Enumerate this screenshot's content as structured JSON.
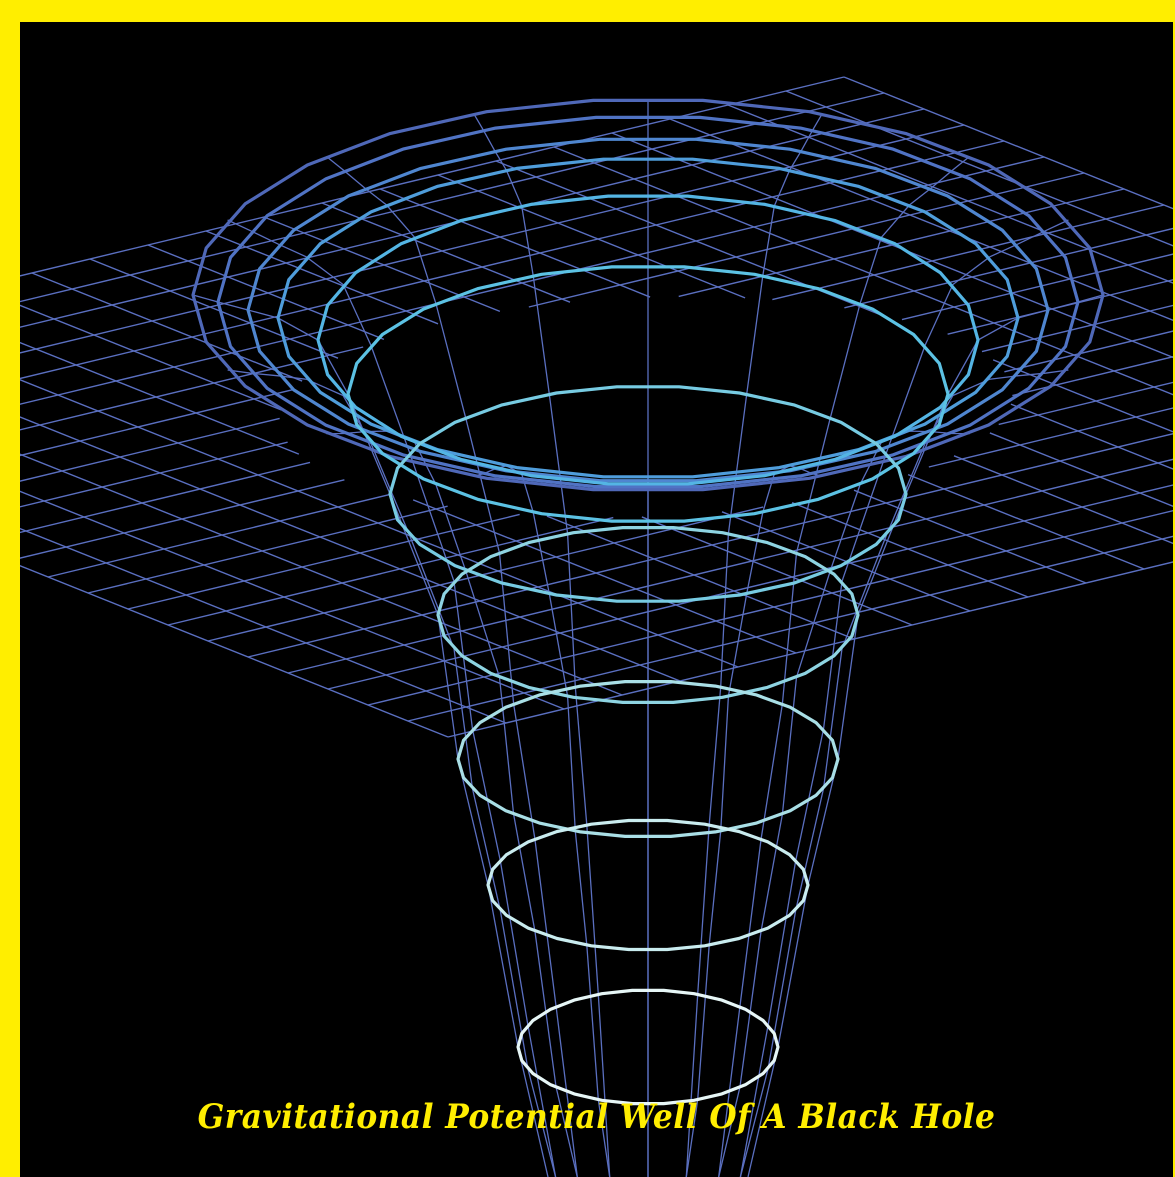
{
  "caption": "Gravitational Potential Well Of A Black Hole",
  "colors": {
    "border": "#ffee00",
    "background": "#000000",
    "grid": "#5a6fc0",
    "caption": "#ffee00"
  },
  "rings": [
    {
      "color": "#4f68b8"
    },
    {
      "color": "#5073c4"
    },
    {
      "color": "#4f86d0"
    },
    {
      "color": "#4f9ddb"
    },
    {
      "color": "#54b5e4"
    },
    {
      "color": "#5cc2e4"
    },
    {
      "color": "#77cbe2"
    },
    {
      "color": "#8ed4e2"
    },
    {
      "color": "#a9dfe6"
    },
    {
      "color": "#c9ecef"
    },
    {
      "color": "#e6f6f6"
    }
  ]
}
